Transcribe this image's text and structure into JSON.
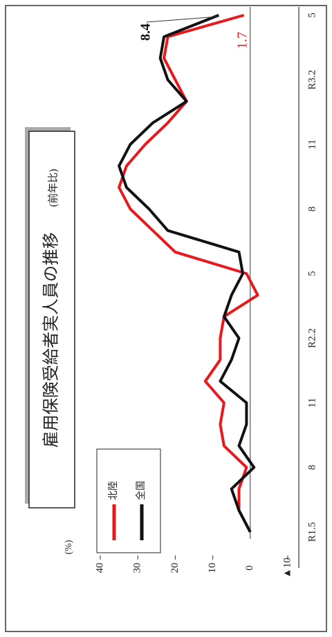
{
  "chart_data": {
    "type": "line",
    "title": "雇用保険受給者実人員の推移",
    "subtitle": "(前年比)",
    "y_label": "(%)",
    "categories": [
      "R1.5",
      null,
      null,
      "8",
      null,
      null,
      "11",
      null,
      null,
      "R2.2",
      null,
      null,
      "5",
      null,
      null,
      "8",
      null,
      null,
      "11",
      null,
      null,
      "R3.2",
      null,
      null,
      "5"
    ],
    "series": [
      {
        "name": "北陸",
        "color": "#e8191c",
        "values": [
          0,
          3,
          3,
          1,
          7,
          8,
          7,
          12,
          8,
          8,
          7,
          -2,
          1,
          20,
          26,
          32,
          35,
          33,
          28,
          22,
          17,
          20,
          23,
          22,
          1.7
        ]
      },
      {
        "name": "全国",
        "color": "#111111",
        "values": [
          0,
          3,
          5,
          -1,
          3,
          1,
          1,
          8,
          5,
          3,
          7,
          5,
          2,
          3,
          22,
          27,
          33,
          35,
          32,
          26,
          17,
          22,
          24,
          23,
          8.4
        ]
      }
    ],
    "ylim": [
      -10,
      40
    ],
    "yticks": [
      {
        "value": -10,
        "label": "▲10"
      },
      0,
      10,
      20,
      30,
      40
    ],
    "legend": "upper-left"
  }
}
